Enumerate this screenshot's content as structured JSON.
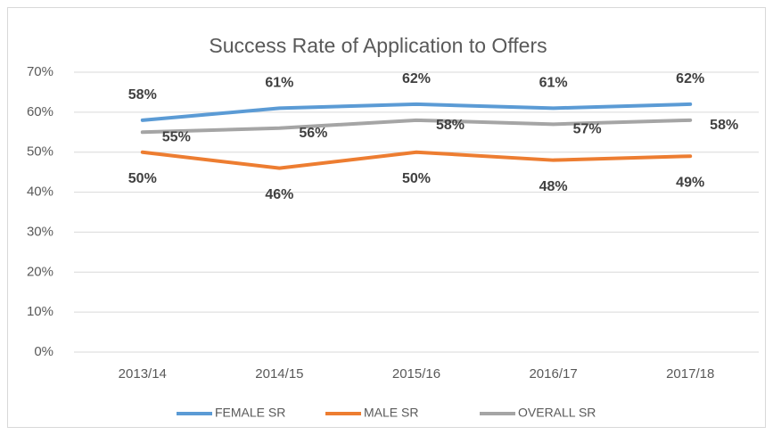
{
  "chart_data": {
    "type": "line",
    "title": "Success Rate of Application to Offers",
    "categories": [
      "2013/14",
      "2014/15",
      "2015/16",
      "2016/17",
      "2017/18"
    ],
    "series": [
      {
        "name": "FEMALE SR",
        "color": "#5b9bd5",
        "values": [
          58,
          61,
          62,
          61,
          62
        ],
        "value_labels": [
          "58%",
          "61%",
          "62%",
          "61%",
          "62%"
        ]
      },
      {
        "name": "MALE SR",
        "color": "#ed7d31",
        "values": [
          50,
          46,
          50,
          48,
          49
        ],
        "value_labels": [
          "50%",
          "46%",
          "50%",
          "48%",
          "49%"
        ]
      },
      {
        "name": "OVERALL SR",
        "color": "#a5a5a5",
        "values": [
          55,
          56,
          58,
          57,
          58
        ],
        "value_labels": [
          "55%",
          "56%",
          "58%",
          "57%",
          "58%"
        ]
      }
    ],
    "ylim": [
      0,
      70
    ],
    "yticks": [
      {
        "value": 0,
        "label": "0%"
      },
      {
        "value": 10,
        "label": "10%"
      },
      {
        "value": 20,
        "label": "20%"
      },
      {
        "value": 30,
        "label": "30%"
      },
      {
        "value": 40,
        "label": "40%"
      },
      {
        "value": 50,
        "label": "50%"
      },
      {
        "value": 60,
        "label": "60%"
      },
      {
        "value": 70,
        "label": "70%"
      }
    ],
    "grid": true,
    "legend": "bottom"
  }
}
